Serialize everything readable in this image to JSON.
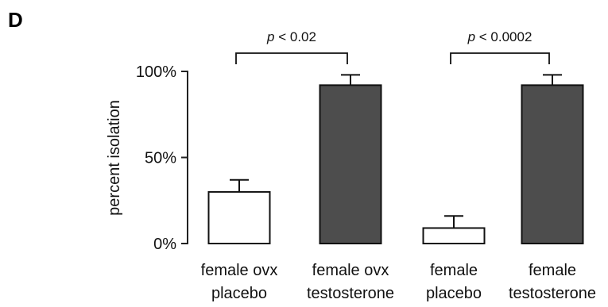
{
  "panel_label": "D",
  "chart_data": {
    "type": "bar",
    "categories": [
      [
        "female ovx",
        "placebo"
      ],
      [
        "female ovx",
        "testosterone"
      ],
      [
        "female",
        "placebo"
      ],
      [
        "female",
        "testosterone"
      ]
    ],
    "values": [
      30,
      92,
      9,
      92
    ],
    "errors": [
      7,
      6,
      7,
      6
    ],
    "bar_colors": [
      "#ffffff",
      "#4d4d4d",
      "#ffffff",
      "#4d4d4d"
    ],
    "ylabel": "percent isolation",
    "ylim": [
      0,
      100
    ],
    "yticks": [
      {
        "value": 0,
        "label": "0%"
      },
      {
        "value": 50,
        "label": "50%"
      },
      {
        "value": 100,
        "label": "100%"
      }
    ],
    "comparisons": [
      {
        "from": 0,
        "to": 1,
        "p_symbol": "p",
        "p_rest": "< 0.02"
      },
      {
        "from": 2,
        "to": 3,
        "p_symbol": "p",
        "p_rest": "< 0.0002"
      }
    ]
  }
}
